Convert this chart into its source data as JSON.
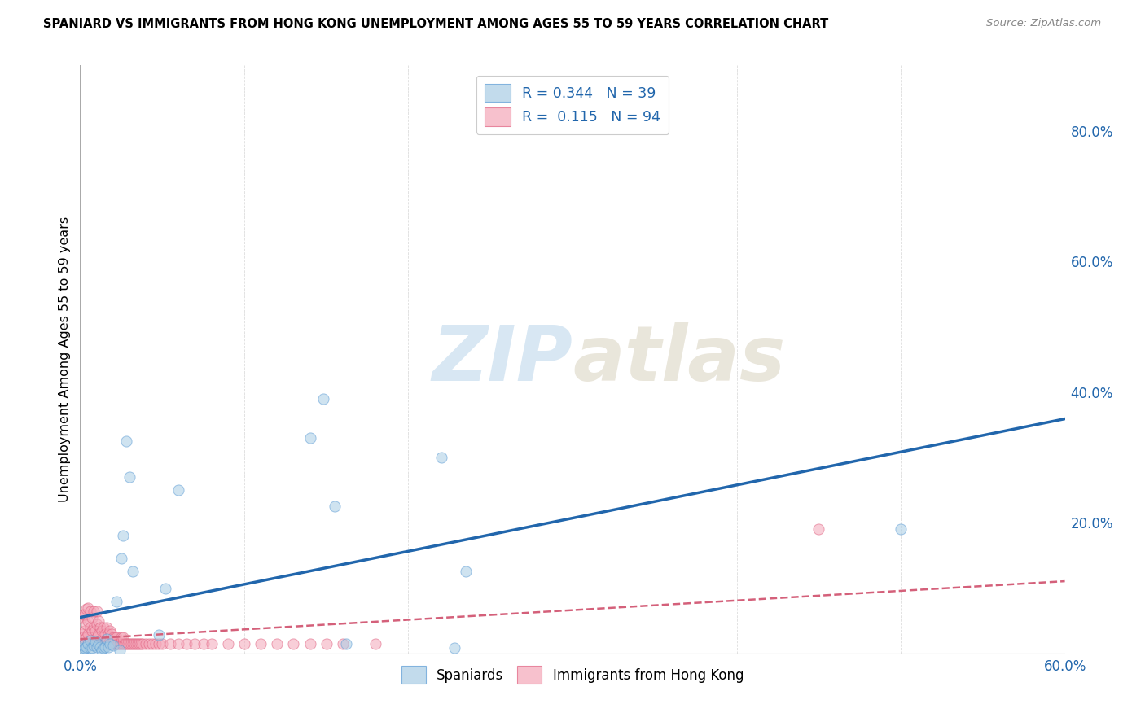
{
  "title": "SPANIARD VS IMMIGRANTS FROM HONG KONG UNEMPLOYMENT AMONG AGES 55 TO 59 YEARS CORRELATION CHART",
  "source": "Source: ZipAtlas.com",
  "ylabel": "Unemployment Among Ages 55 to 59 years",
  "xlim": [
    0.0,
    0.6
  ],
  "ylim": [
    0.0,
    0.9
  ],
  "x_ticks": [
    0.0,
    0.1,
    0.2,
    0.3,
    0.4,
    0.5,
    0.6
  ],
  "x_tick_labels": [
    "0.0%",
    "",
    "",
    "",
    "",
    "",
    "60.0%"
  ],
  "y_ticks_right": [
    0.0,
    0.2,
    0.4,
    0.6,
    0.8
  ],
  "y_tick_labels_right": [
    "",
    "20.0%",
    "40.0%",
    "60.0%",
    "80.0%"
  ],
  "watermark_zip": "ZIP",
  "watermark_atlas": "atlas",
  "color_blue": "#a8cce4",
  "color_pink": "#f4a7b9",
  "color_blue_edge": "#5b9bd5",
  "color_pink_edge": "#e06080",
  "color_blue_line": "#2166ac",
  "color_pink_line": "#d4607a",
  "color_legend_text": "#2166ac",
  "spaniards_x": [
    0.001,
    0.002,
    0.002,
    0.003,
    0.004,
    0.005,
    0.006,
    0.006,
    0.007,
    0.008,
    0.009,
    0.01,
    0.011,
    0.012,
    0.013,
    0.014,
    0.015,
    0.016,
    0.017,
    0.018,
    0.02,
    0.022,
    0.024,
    0.025,
    0.026,
    0.028,
    0.03,
    0.032,
    0.048,
    0.052,
    0.06,
    0.14,
    0.148,
    0.155,
    0.162,
    0.22,
    0.228,
    0.235,
    0.5
  ],
  "spaniards_y": [
    0.008,
    0.005,
    0.012,
    0.008,
    0.01,
    0.015,
    0.008,
    0.02,
    0.008,
    0.012,
    0.018,
    0.01,
    0.014,
    0.01,
    0.005,
    0.008,
    0.01,
    0.022,
    0.01,
    0.015,
    0.012,
    0.08,
    0.005,
    0.145,
    0.18,
    0.325,
    0.27,
    0.125,
    0.028,
    0.1,
    0.25,
    0.33,
    0.39,
    0.225,
    0.015,
    0.3,
    0.008,
    0.125,
    0.19
  ],
  "hk_x": [
    0.001,
    0.001,
    0.002,
    0.002,
    0.003,
    0.003,
    0.003,
    0.004,
    0.004,
    0.004,
    0.005,
    0.005,
    0.005,
    0.005,
    0.006,
    0.006,
    0.006,
    0.007,
    0.007,
    0.007,
    0.008,
    0.008,
    0.008,
    0.009,
    0.009,
    0.01,
    0.01,
    0.01,
    0.01,
    0.011,
    0.011,
    0.011,
    0.012,
    0.012,
    0.013,
    0.013,
    0.014,
    0.014,
    0.015,
    0.015,
    0.016,
    0.016,
    0.017,
    0.017,
    0.018,
    0.018,
    0.019,
    0.019,
    0.02,
    0.02,
    0.021,
    0.021,
    0.022,
    0.022,
    0.023,
    0.024,
    0.025,
    0.025,
    0.026,
    0.026,
    0.027,
    0.028,
    0.029,
    0.03,
    0.031,
    0.032,
    0.033,
    0.034,
    0.035,
    0.036,
    0.037,
    0.038,
    0.04,
    0.042,
    0.044,
    0.046,
    0.048,
    0.05,
    0.055,
    0.06,
    0.065,
    0.07,
    0.075,
    0.08,
    0.09,
    0.1,
    0.11,
    0.12,
    0.13,
    0.14,
    0.15,
    0.16,
    0.18,
    0.45
  ],
  "hk_y": [
    0.03,
    0.055,
    0.025,
    0.06,
    0.015,
    0.035,
    0.06,
    0.025,
    0.045,
    0.068,
    0.015,
    0.03,
    0.05,
    0.07,
    0.02,
    0.04,
    0.065,
    0.015,
    0.035,
    0.055,
    0.02,
    0.04,
    0.065,
    0.015,
    0.035,
    0.015,
    0.025,
    0.045,
    0.065,
    0.015,
    0.03,
    0.05,
    0.02,
    0.04,
    0.015,
    0.035,
    0.02,
    0.04,
    0.015,
    0.03,
    0.02,
    0.04,
    0.015,
    0.03,
    0.02,
    0.035,
    0.015,
    0.03,
    0.015,
    0.025,
    0.015,
    0.025,
    0.015,
    0.025,
    0.015,
    0.015,
    0.015,
    0.025,
    0.015,
    0.025,
    0.015,
    0.015,
    0.015,
    0.015,
    0.015,
    0.015,
    0.015,
    0.015,
    0.015,
    0.015,
    0.015,
    0.015,
    0.015,
    0.015,
    0.015,
    0.015,
    0.015,
    0.015,
    0.015,
    0.015,
    0.015,
    0.015,
    0.015,
    0.015,
    0.015,
    0.015,
    0.015,
    0.015,
    0.015,
    0.015,
    0.015,
    0.015,
    0.015,
    0.19
  ]
}
